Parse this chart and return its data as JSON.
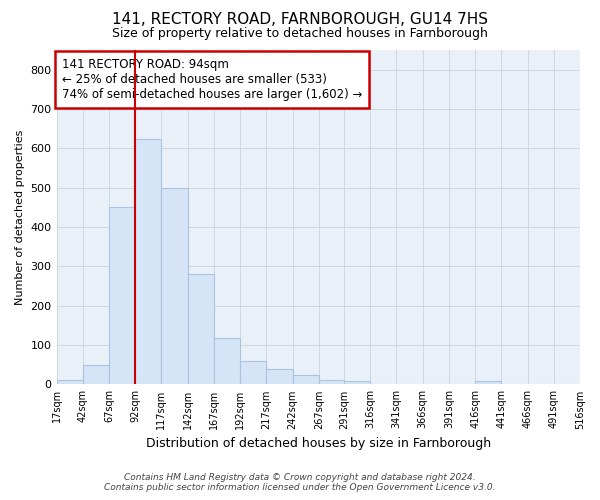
{
  "title": "141, RECTORY ROAD, FARNBOROUGH, GU14 7HS",
  "subtitle": "Size of property relative to detached houses in Farnborough",
  "xlabel": "Distribution of detached houses by size in Farnborough",
  "ylabel": "Number of detached properties",
  "bar_color": "#d6e4f7",
  "bar_edge_color": "#a8c4e0",
  "grid_color": "#c8d4e0",
  "background_color": "#eaf0f8",
  "annotation_box_color": "#cc0000",
  "annotation_text": "141 RECTORY ROAD: 94sqm\n← 25% of detached houses are smaller (533)\n74% of semi-detached houses are larger (1,602) →",
  "vline_x": 92,
  "vline_color": "#cc0000",
  "footnote1": "Contains HM Land Registry data © Crown copyright and database right 2024.",
  "footnote2": "Contains public sector information licensed under the Open Government Licence v3.0.",
  "bin_edges": [
    17,
    42,
    67,
    92,
    117,
    142,
    167,
    192,
    217,
    242,
    267,
    291,
    316,
    341,
    366,
    391,
    416,
    441,
    466,
    491,
    516
  ],
  "bar_heights": [
    10,
    50,
    450,
    625,
    500,
    280,
    118,
    60,
    38,
    25,
    10,
    8,
    0,
    0,
    0,
    0,
    8,
    0,
    0,
    0
  ],
  "ylim": [
    0,
    850
  ],
  "yticks": [
    0,
    100,
    200,
    300,
    400,
    500,
    600,
    700,
    800
  ]
}
